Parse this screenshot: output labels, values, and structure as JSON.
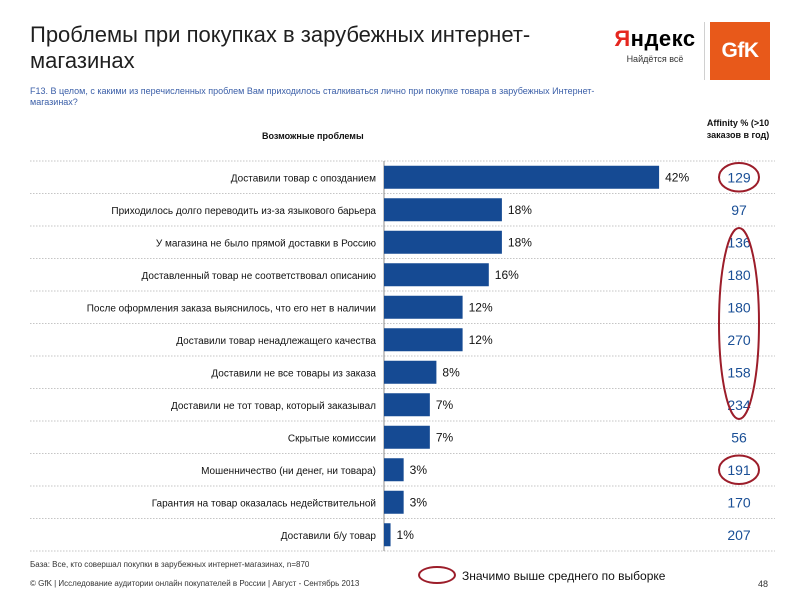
{
  "title": "Проблемы при покупках в зарубежных интернет-магазинах",
  "subtitle": "F13. В целом, с какими из перечисленных проблем Вам приходилось сталкиваться лично при покупке товара в зарубежных Интернет-магазинах?",
  "logos": {
    "yandex_first": "Я",
    "yandex_rest": "ндекс",
    "yandex_slogan": "Найдётся всё",
    "gfk": "GfK"
  },
  "columns": {
    "problems": "Возможные проблемы",
    "affinity": "Affinity % (>10 заказов в год)"
  },
  "chart_data": {
    "type": "bar",
    "orientation": "horizontal",
    "categories": [
      "Доставили товар с опозданием",
      "Приходилось долго переводить из-за языкового барьера",
      "У магазина не было прямой доставки в Россию",
      "Доставленный товар не соответствовал описанию",
      "После оформления заказа выяснилось, что его нет в наличии",
      "Доставили товар ненадлежащего качества",
      "Доставили не все товары из заказа",
      "Доставили не тот товар, который заказывал",
      "Скрытые комиссии",
      "Мошенничество (ни денег, ни товара)",
      "Гарантия на товар оказалась недействительной",
      "Доставили б/у товар"
    ],
    "values": [
      42,
      18,
      18,
      16,
      12,
      12,
      8,
      7,
      7,
      3,
      3,
      1
    ],
    "value_labels": [
      "42%",
      "18%",
      "18%",
      "16%",
      "12%",
      "12%",
      "8%",
      "7%",
      "7%",
      "3%",
      "3%",
      "1%"
    ],
    "affinity": [
      129,
      97,
      136,
      180,
      180,
      270,
      158,
      234,
      56,
      191,
      170,
      207
    ],
    "affinity_highlight_groups": [
      [
        0,
        0
      ],
      [
        2,
        7
      ],
      [
        9,
        9
      ]
    ],
    "bar_color": "#154a93",
    "affinity_color": "#1a4f96",
    "highlight_color": "#9c1d2a",
    "xlim": [
      0,
      50
    ]
  },
  "legend": {
    "text": "Значимо выше среднего по выборке"
  },
  "footer": {
    "base": "База: Все, кто совершал покупки в зарубежных интернет-магазинах, n=870",
    "copyright": "© GfK | Исследование аудитории онлайн покупателей в России | Август - Сентябрь 2013",
    "page": "48"
  }
}
